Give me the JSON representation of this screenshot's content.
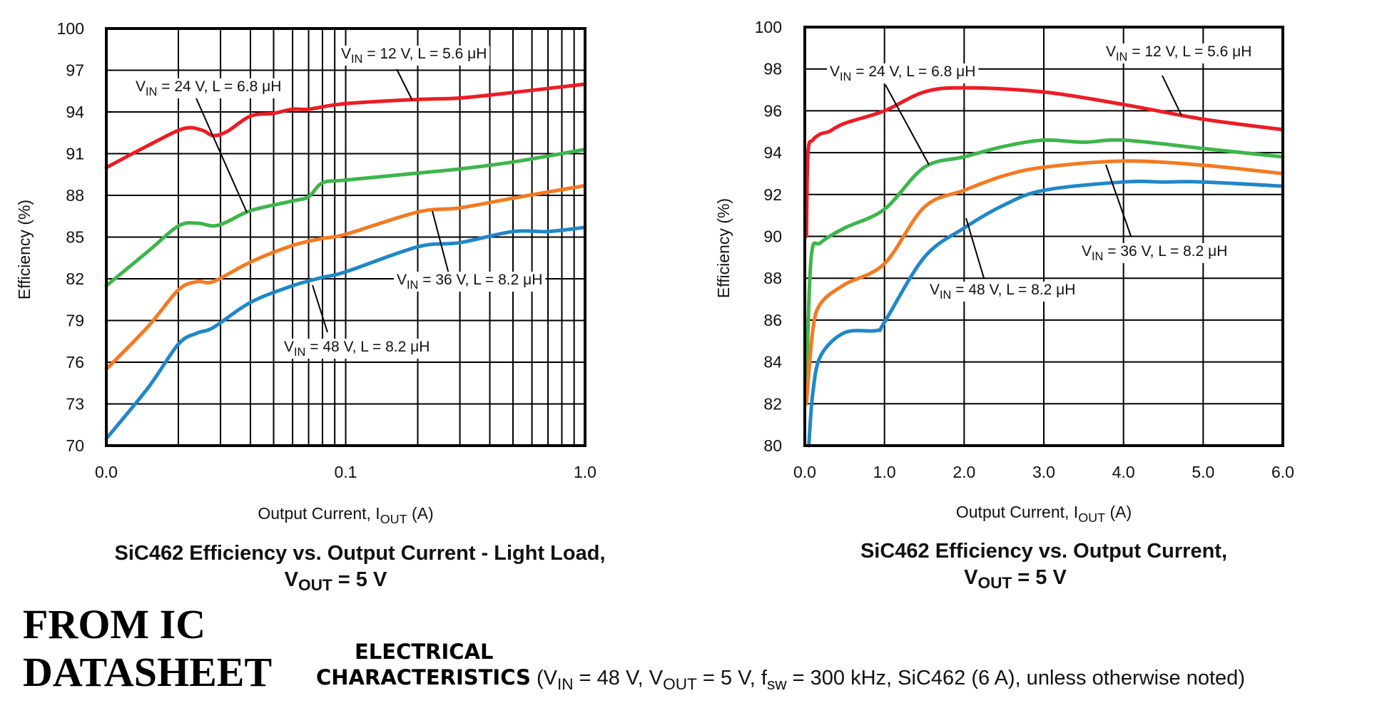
{
  "chart_data": [
    {
      "type": "line",
      "title": "SiC462 Efficiency vs. Output Current - Light Load,",
      "title_line2": {
        "main": "V",
        "sub": "OUT",
        "rest": " = 5 V"
      },
      "xlabel": {
        "main": "Output Current, I",
        "sub": "OUT",
        "rest": " (A)"
      },
      "ylabel": "Efficiency (%)",
      "xscale": "log",
      "xlim": [
        0.01,
        1.0
      ],
      "ylim": [
        70,
        100
      ],
      "x_ticks": [
        {
          "value": 0.01,
          "label": "0.0"
        },
        {
          "value": 0.1,
          "label": "0.1"
        },
        {
          "value": 1.0,
          "label": "1.0"
        }
      ],
      "y_ticks": [
        70,
        73,
        76,
        79,
        82,
        85,
        88,
        91,
        94,
        97,
        100
      ],
      "grid": true,
      "series": [
        {
          "name": "VIN = 12 V, L = 5.6 μH",
          "label": {
            "main": "V",
            "sub": "IN",
            "rest": " = 12 V, L = 5.6 μH"
          },
          "color": "#ed1c24",
          "x": [
            0.01,
            0.015,
            0.021,
            0.025,
            0.028,
            0.032,
            0.04,
            0.05,
            0.06,
            0.07,
            0.1,
            0.2,
            0.3,
            0.5,
            1.0
          ],
          "y": [
            90.0,
            91.6,
            92.8,
            92.7,
            92.3,
            92.6,
            93.7,
            93.9,
            94.2,
            94.2,
            94.6,
            94.9,
            95.0,
            95.4,
            96.0
          ]
        },
        {
          "name": "VIN = 24 V, L = 6.8 μH",
          "label": {
            "main": "V",
            "sub": "IN",
            "rest": " = 24 V, L = 6.8 μH"
          },
          "color": "#3db54a",
          "x": [
            0.01,
            0.015,
            0.02,
            0.024,
            0.028,
            0.032,
            0.04,
            0.06,
            0.07,
            0.08,
            0.1,
            0.2,
            0.3,
            0.5,
            1.0
          ],
          "y": [
            81.5,
            84.0,
            85.8,
            86.0,
            85.8,
            86.1,
            86.9,
            87.6,
            87.9,
            88.9,
            89.1,
            89.6,
            89.9,
            90.4,
            91.3
          ]
        },
        {
          "name": "VIN = 36 V, L = 8.2 μH",
          "label": {
            "main": "V",
            "sub": "IN",
            "rest": " = 36 V, L = 8.2 μH"
          },
          "color": "#f47a20",
          "x": [
            0.01,
            0.015,
            0.02,
            0.024,
            0.028,
            0.04,
            0.06,
            0.08,
            0.1,
            0.2,
            0.3,
            0.5,
            1.0
          ],
          "y": [
            75.5,
            78.6,
            81.2,
            81.8,
            81.8,
            83.2,
            84.4,
            84.9,
            85.2,
            86.8,
            87.1,
            87.8,
            88.7
          ]
        },
        {
          "name": "VIN = 48 V, L = 8.2 μH",
          "label": {
            "main": "V",
            "sub": "IN",
            "rest": " = 48 V, L = 8.2 μH"
          },
          "color": "#1f87c8",
          "x": [
            0.01,
            0.015,
            0.02,
            0.024,
            0.028,
            0.04,
            0.06,
            0.08,
            0.1,
            0.2,
            0.3,
            0.5,
            0.7,
            1.0
          ],
          "y": [
            70.5,
            74.2,
            77.3,
            78.1,
            78.5,
            80.3,
            81.5,
            82.1,
            82.5,
            84.3,
            84.6,
            85.4,
            85.4,
            85.7
          ]
        }
      ]
    },
    {
      "type": "line",
      "title": "SiC462 Efficiency vs. Output Current,",
      "title_line2": {
        "main": "V",
        "sub": "OUT",
        "rest": " = 5 V"
      },
      "xlabel": {
        "main": "Output Current, I",
        "sub": "OUT",
        "rest": " (A)"
      },
      "ylabel": "Efficiency (%)",
      "xscale": "linear",
      "xlim": [
        0,
        6
      ],
      "ylim": [
        80,
        100
      ],
      "x_ticks": [
        {
          "value": 0,
          "label": "0.0"
        },
        {
          "value": 1,
          "label": "1.0"
        },
        {
          "value": 2,
          "label": "2.0"
        },
        {
          "value": 3,
          "label": "3.0"
        },
        {
          "value": 4,
          "label": "4.0"
        },
        {
          "value": 5,
          "label": "5.0"
        },
        {
          "value": 6,
          "label": "6.0"
        }
      ],
      "y_ticks": [
        80,
        82,
        84,
        86,
        88,
        90,
        92,
        94,
        96,
        98,
        100
      ],
      "grid": true,
      "series": [
        {
          "name": "VIN = 12 V, L = 5.6 μH",
          "label": {
            "main": "V",
            "sub": "IN",
            "rest": " = 12 V, L = 5.6 μH"
          },
          "color": "#ed1c24",
          "x": [
            0.02,
            0.04,
            0.1,
            0.2,
            0.3,
            0.5,
            1.0,
            1.5,
            2.0,
            3.0,
            4.0,
            5.0,
            6.0
          ],
          "y": [
            90.0,
            94.0,
            94.6,
            94.9,
            95.0,
            95.4,
            96.0,
            96.9,
            97.1,
            96.9,
            96.3,
            95.6,
            95.1
          ]
        },
        {
          "name": "VIN = 24 V, L = 6.8 μH",
          "label": {
            "main": "V",
            "sub": "IN",
            "rest": " = 24 V, L = 6.8 μH"
          },
          "color": "#3db54a",
          "x": [
            0.02,
            0.08,
            0.2,
            0.5,
            1.0,
            1.5,
            2.0,
            2.5,
            3.0,
            3.5,
            4.0,
            5.0,
            6.0
          ],
          "y": [
            83.0,
            89.0,
            89.7,
            90.4,
            91.3,
            93.3,
            93.8,
            94.3,
            94.6,
            94.5,
            94.6,
            94.2,
            93.8
          ]
        },
        {
          "name": "VIN = 36 V, L = 8.2 μH",
          "label": {
            "main": "V",
            "sub": "IN",
            "rest": " = 36 V, L = 8.2 μH"
          },
          "color": "#f47a20",
          "x": [
            0.02,
            0.1,
            0.2,
            0.5,
            1.0,
            1.5,
            2.0,
            2.5,
            3.0,
            4.0,
            5.0,
            6.0
          ],
          "y": [
            82.0,
            85.5,
            86.8,
            87.7,
            88.7,
            91.4,
            92.2,
            92.9,
            93.3,
            93.6,
            93.4,
            93.0
          ]
        },
        {
          "name": "VIN = 48 V, L = 8.2 μH",
          "label": {
            "main": "V",
            "sub": "IN",
            "rest": " = 48 V, L = 8.2 μH"
          },
          "color": "#1f87c8",
          "x": [
            0.05,
            0.1,
            0.2,
            0.5,
            0.9,
            1.0,
            1.5,
            2.0,
            2.5,
            3.0,
            4.0,
            4.5,
            5.0,
            6.0
          ],
          "y": [
            80.0,
            82.5,
            84.3,
            85.4,
            85.5,
            85.9,
            89.0,
            90.4,
            91.5,
            92.2,
            92.6,
            92.6,
            92.6,
            92.4
          ]
        }
      ]
    }
  ],
  "footer": {
    "stamp_line1": "FROM IC",
    "stamp_line2": "DATASHEET",
    "heading_line1": "ELECTRICAL",
    "heading_line2": "CHARACTERISTICS",
    "conditions": [
      {
        "t": " (V"
      },
      {
        "t": "IN",
        "sub": true
      },
      {
        "t": " = 48 V, V"
      },
      {
        "t": "OUT",
        "sub": true
      },
      {
        "t": " = 5 V, f"
      },
      {
        "t": "sw",
        "sub": true
      },
      {
        "t": " = 300 kHz, SiC462 (6 A), unless otherwise noted)"
      }
    ]
  }
}
